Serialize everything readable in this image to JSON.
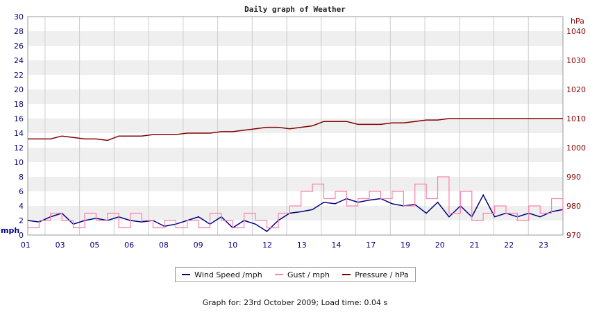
{
  "chart_data": {
    "type": "line",
    "title": "Daily graph of Weather",
    "left_axis": {
      "unit": "mph",
      "ylim": [
        0,
        30
      ],
      "ticks": [
        0,
        2,
        4,
        6,
        8,
        10,
        12,
        14,
        16,
        18,
        20,
        22,
        24,
        26,
        28,
        30
      ]
    },
    "right_axis": {
      "unit": "hPa",
      "ylim": [
        970,
        1045
      ],
      "ticks": [
        970,
        980,
        990,
        1000,
        1010,
        1020,
        1030,
        1040
      ]
    },
    "x_range": [
      0,
      23.5
    ],
    "x_tick_labels": [
      "01",
      "03",
      "05",
      "06",
      "08",
      "09",
      "10",
      "12",
      "13",
      "14",
      "17",
      "19",
      "20",
      "21",
      "22",
      "23"
    ],
    "grid": true,
    "legend_position": "bottom",
    "series": [
      {
        "name": "Wind Speed /mph",
        "axis": "left",
        "color": "#000080",
        "x": [
          0,
          0.5,
          1,
          1.5,
          2,
          2.5,
          3,
          3.5,
          4,
          4.5,
          5,
          5.5,
          6,
          6.5,
          7,
          7.5,
          8,
          8.5,
          9,
          9.5,
          10,
          10.5,
          11,
          11.5,
          12,
          12.5,
          13,
          13.5,
          14,
          14.5,
          15,
          15.5,
          16,
          16.5,
          17,
          17.5,
          18,
          18.5,
          19,
          19.5,
          20,
          20.5,
          21,
          21.5,
          22,
          22.5,
          23,
          23.5
        ],
        "values": [
          2,
          1.8,
          2.5,
          3,
          1.5,
          2,
          2.3,
          2,
          2.5,
          2,
          1.8,
          2,
          1.2,
          1.5,
          2,
          2.5,
          1.5,
          2.5,
          1,
          2,
          1.5,
          0.5,
          2,
          3,
          3.2,
          3.5,
          4.5,
          4.3,
          5,
          4.5,
          4.8,
          5,
          4.3,
          4,
          4.2,
          3,
          4.5,
          2.5,
          4,
          2.5,
          5.5,
          2.5,
          3,
          2.5,
          3,
          2.5,
          3.2,
          3.5
        ]
      },
      {
        "name": "Gust / mph",
        "axis": "left",
        "color": "#ff80a8",
        "x": [
          0,
          0.5,
          1,
          1.5,
          2,
          2.5,
          3,
          3.5,
          4,
          4.5,
          5,
          5.5,
          6,
          6.5,
          7,
          7.5,
          8,
          8.5,
          9,
          9.5,
          10,
          10.5,
          11,
          11.5,
          12,
          12.5,
          13,
          13.5,
          14,
          14.5,
          15,
          15.5,
          16,
          16.5,
          17,
          17.5,
          18,
          18.5,
          19,
          19.5,
          20,
          20.5,
          21,
          21.5,
          22,
          22.5,
          23,
          23.5
        ],
        "values": [
          1,
          2,
          3,
          2,
          1,
          3,
          2,
          3,
          1,
          3,
          2,
          1,
          2,
          1,
          2,
          1,
          3,
          2,
          1,
          3,
          2,
          1,
          3,
          4,
          6,
          7,
          5,
          6,
          4,
          5,
          6,
          5,
          6,
          4,
          7,
          5,
          8,
          3,
          6,
          2,
          3,
          4,
          3,
          2,
          4,
          3,
          5,
          3
        ]
      },
      {
        "name": "Pressure / hPa",
        "axis": "right",
        "color": "#800000",
        "x": [
          0,
          1,
          1.5,
          2,
          2.5,
          3,
          3.5,
          4,
          4.5,
          5,
          5.5,
          6,
          6.5,
          7,
          7.5,
          8,
          8.5,
          9,
          9.5,
          10,
          10.5,
          11,
          11.5,
          12,
          12.5,
          13,
          13.5,
          14,
          14.5,
          15,
          15.5,
          16,
          16.5,
          17,
          17.5,
          18,
          18.5,
          19,
          19.5,
          20,
          20.5,
          21,
          21.5,
          22,
          22.5,
          23,
          23.5
        ],
        "values": [
          1003,
          1003,
          1004,
          1003.5,
          1003,
          1003,
          1002.5,
          1004,
          1004,
          1004,
          1004.5,
          1004.5,
          1004.5,
          1005,
          1005,
          1005,
          1005.5,
          1005.5,
          1006,
          1006.5,
          1007,
          1007,
          1006.5,
          1007,
          1007.5,
          1009,
          1009,
          1009,
          1008,
          1008,
          1008,
          1008.5,
          1008.5,
          1009,
          1009.5,
          1009.5,
          1010,
          1010,
          1010,
          1010,
          1010,
          1010,
          1010,
          1010,
          1010,
          1010,
          1010
        ]
      }
    ]
  },
  "footer": "Graph for: 23rd October 2009; Load time: 0.04 s"
}
